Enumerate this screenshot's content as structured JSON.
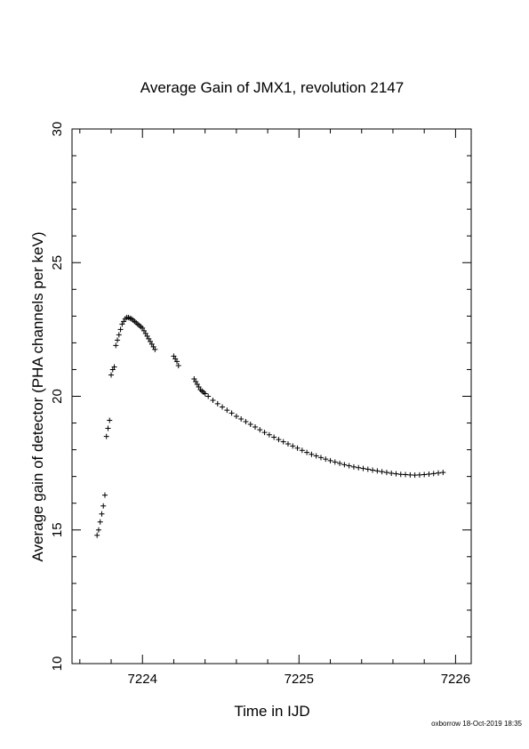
{
  "chart_data": {
    "type": "scatter",
    "title": "Average Gain of JMX1, revolution 2147",
    "xlabel": "Time in IJD",
    "ylabel": "Average gain of detector (PHA channels per keV)",
    "xlim": [
      7223.55,
      7226.1
    ],
    "ylim": [
      10,
      30
    ],
    "xticks": [
      7224,
      7225,
      7226
    ],
    "yticks": [
      10,
      15,
      20,
      25,
      30
    ],
    "grid": false,
    "marker": "plus",
    "color": "#000000",
    "series": [
      {
        "x": [
          7223.71,
          7223.72,
          7223.73,
          7223.74,
          7223.75,
          7223.76,
          7223.77,
          7223.78,
          7223.79,
          7223.8,
          7223.81,
          7223.82,
          7223.83,
          7223.84,
          7223.85,
          7223.86,
          7223.87,
          7223.88,
          7223.89,
          7223.9,
          7223.91,
          7223.92,
          7223.93,
          7223.94,
          7223.95,
          7223.96,
          7223.97,
          7223.98,
          7223.99,
          7224.0,
          7224.01,
          7224.02,
          7224.03,
          7224.04,
          7224.05,
          7224.06,
          7224.07,
          7224.08,
          7224.2,
          7224.21,
          7224.22,
          7224.23,
          7224.33,
          7224.34,
          7224.35,
          7224.36,
          7224.37,
          7224.38,
          7224.39,
          7224.4,
          7224.42,
          7224.45,
          7224.48,
          7224.51,
          7224.54,
          7224.57,
          7224.6,
          7224.63,
          7224.66,
          7224.69,
          7224.72,
          7224.75,
          7224.78,
          7224.81,
          7224.84,
          7224.87,
          7224.9,
          7224.93,
          7224.96,
          7224.99,
          7225.02,
          7225.05,
          7225.08,
          7225.11,
          7225.14,
          7225.17,
          7225.2,
          7225.23,
          7225.26,
          7225.29,
          7225.32,
          7225.35,
          7225.38,
          7225.41,
          7225.44,
          7225.47,
          7225.5,
          7225.53,
          7225.56,
          7225.59,
          7225.62,
          7225.65,
          7225.68,
          7225.71,
          7225.74,
          7225.77,
          7225.8,
          7225.83,
          7225.86,
          7225.89,
          7225.92
        ],
        "y": [
          14.8,
          15.0,
          15.3,
          15.6,
          15.9,
          16.3,
          18.5,
          18.8,
          19.1,
          20.8,
          21.0,
          21.1,
          21.9,
          22.1,
          22.3,
          22.5,
          22.7,
          22.8,
          22.9,
          22.95,
          22.95,
          22.92,
          22.9,
          22.85,
          22.8,
          22.75,
          22.7,
          22.65,
          22.6,
          22.55,
          22.45,
          22.35,
          22.25,
          22.15,
          22.05,
          21.95,
          21.85,
          21.75,
          21.5,
          21.4,
          21.3,
          21.15,
          20.65,
          20.55,
          20.45,
          20.35,
          20.25,
          20.2,
          20.15,
          20.1,
          20.0,
          19.85,
          19.72,
          19.6,
          19.48,
          19.37,
          19.25,
          19.15,
          19.05,
          18.95,
          18.85,
          18.75,
          18.65,
          18.56,
          18.47,
          18.38,
          18.3,
          18.22,
          18.14,
          18.06,
          17.98,
          17.9,
          17.83,
          17.77,
          17.71,
          17.65,
          17.59,
          17.54,
          17.49,
          17.44,
          17.4,
          17.36,
          17.33,
          17.3,
          17.27,
          17.24,
          17.21,
          17.18,
          17.15,
          17.12,
          17.1,
          17.08,
          17.07,
          17.06,
          17.05,
          17.06,
          17.07,
          17.09,
          17.11,
          17.13,
          17.15
        ]
      }
    ]
  },
  "footer_text": "oxborrow 18-Oct-2019 18:35"
}
